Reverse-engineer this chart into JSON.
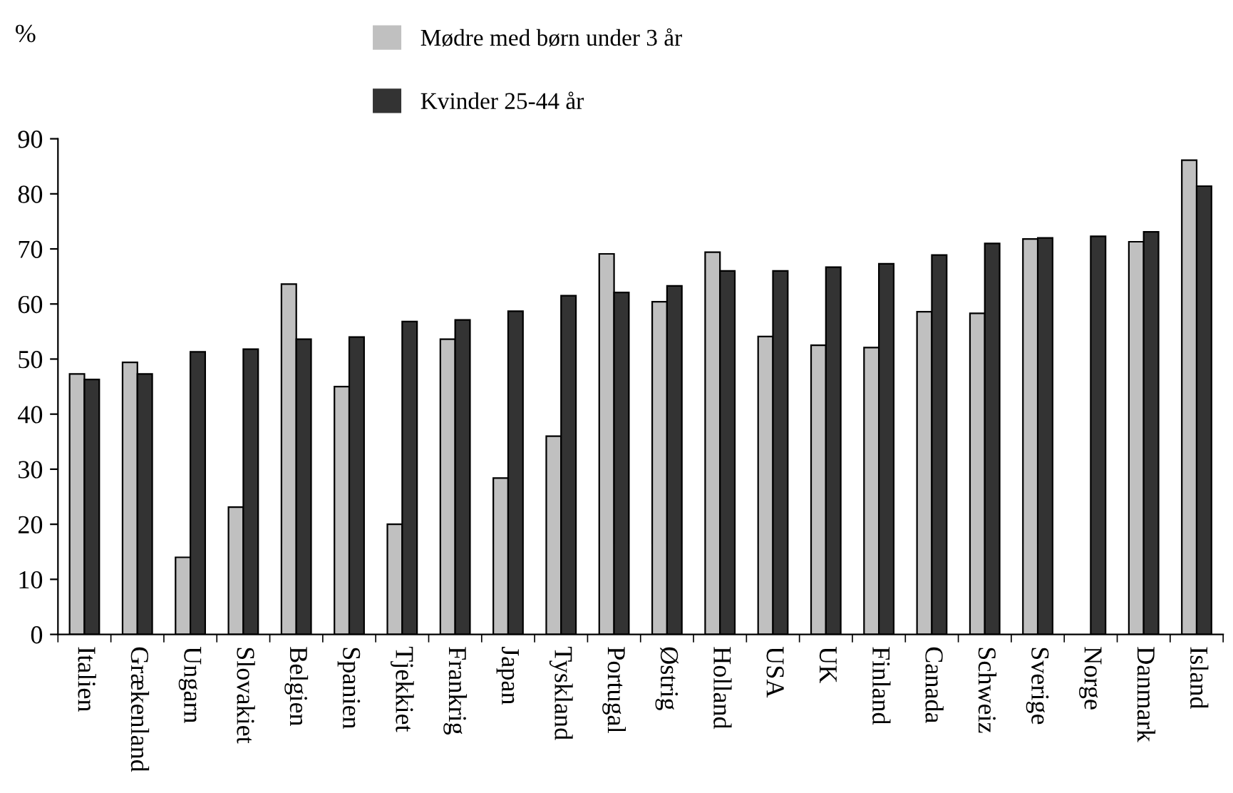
{
  "chart_data": {
    "type": "bar",
    "ylabel": "%",
    "categories": [
      "Italien",
      "Grækenland",
      "Ungarn",
      "Slovakiet",
      "Belgien",
      "Spanien",
      "Tjekkiet",
      "Frankrig",
      "Japan",
      "Tyskland",
      "Portugal",
      "Østrig",
      "Holland",
      "USA",
      "UK",
      "Finland",
      "Canada",
      "Schweiz",
      "Sverige",
      "Norge",
      "Danmark",
      "Island"
    ],
    "series": [
      {
        "name": "Mødre med børn under 3 år",
        "color": "#c0c0c0",
        "values": [
          47.3,
          49.4,
          14,
          23.1,
          63.6,
          45,
          20,
          53.6,
          28.4,
          36,
          69.1,
          60.4,
          69.4,
          54.1,
          52.5,
          52.1,
          58.6,
          58.3,
          71.8,
          null,
          71.3,
          86.1
        ]
      },
      {
        "name": "Kvinder 25-44 år",
        "color": "#333333",
        "values": [
          46.3,
          47.3,
          51.3,
          51.8,
          53.6,
          54,
          56.8,
          57.1,
          58.7,
          61.5,
          62.1,
          63.3,
          66,
          66,
          66.7,
          67.3,
          68.9,
          71,
          72,
          72.3,
          73.1,
          81.4
        ]
      }
    ],
    "ylim": [
      0,
      90
    ],
    "yticks": [
      0,
      10,
      20,
      30,
      40,
      50,
      60,
      70,
      80,
      90
    ],
    "grid": false,
    "legend": "top"
  }
}
